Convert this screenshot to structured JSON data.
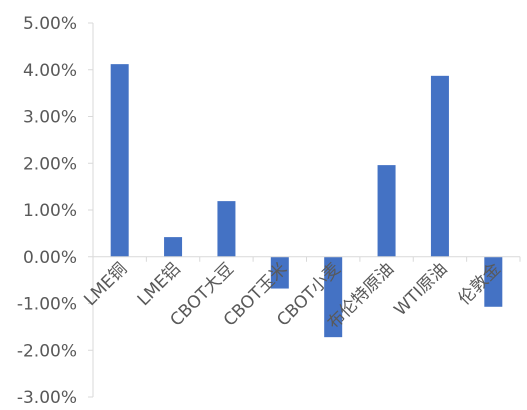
{
  "chart_data": {
    "type": "bar",
    "categories": [
      "LME铜",
      "LME铝",
      "CBOT大豆",
      "CBOT玉米",
      "CBOT小麦",
      "布伦特原油",
      "WTI原油",
      "伦敦金"
    ],
    "values": [
      4.12,
      0.42,
      1.19,
      -0.68,
      -1.72,
      1.96,
      3.87,
      -1.07
    ],
    "ylim": [
      -3.0,
      5.0
    ],
    "yticks": [
      5.0,
      4.0,
      3.0,
      2.0,
      1.0,
      0.0,
      -1.0,
      -2.0,
      -3.0
    ],
    "ytick_labels": [
      "5.00%",
      "4.00%",
      "3.00%",
      "2.00%",
      "1.00%",
      "0.00%",
      "-1.00%",
      "-2.00%",
      "-3.00%"
    ],
    "title": "",
    "xlabel": "",
    "ylabel": "",
    "grid": false,
    "legend": "none",
    "bar_color": "#4472C4",
    "axis_color": "#D9D9D9",
    "text_color": "#595959"
  }
}
